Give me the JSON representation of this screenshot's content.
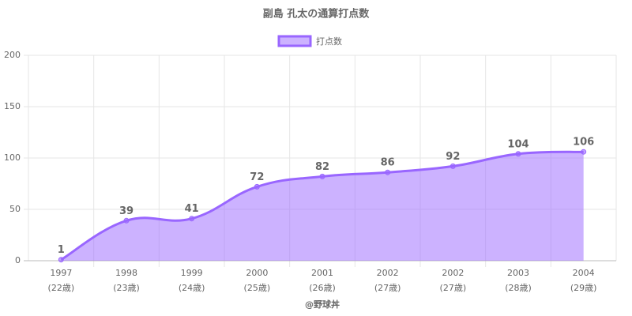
{
  "chart_data": {
    "type": "line",
    "title": "副島 孔太の通算打点数",
    "categories": [
      "1997",
      "1998",
      "1999",
      "2000",
      "2001",
      "2002",
      "2002",
      "2003",
      "2004"
    ],
    "category_sublabels": [
      "(22歳)",
      "(23歳)",
      "(24歳)",
      "(25歳)",
      "(26歳)",
      "(27歳)",
      "(27歳)",
      "(28歳)",
      "(29歳)"
    ],
    "series": [
      {
        "name": "打点数",
        "color": "#9966ff",
        "values": [
          1,
          39,
          41,
          72,
          82,
          86,
          92,
          104,
          106
        ]
      }
    ],
    "ylim": [
      0,
      200
    ],
    "yticks": [
      0,
      50,
      100,
      150,
      200
    ],
    "grid": true,
    "fill": true,
    "legend": "top",
    "footer": "@野球丼"
  }
}
